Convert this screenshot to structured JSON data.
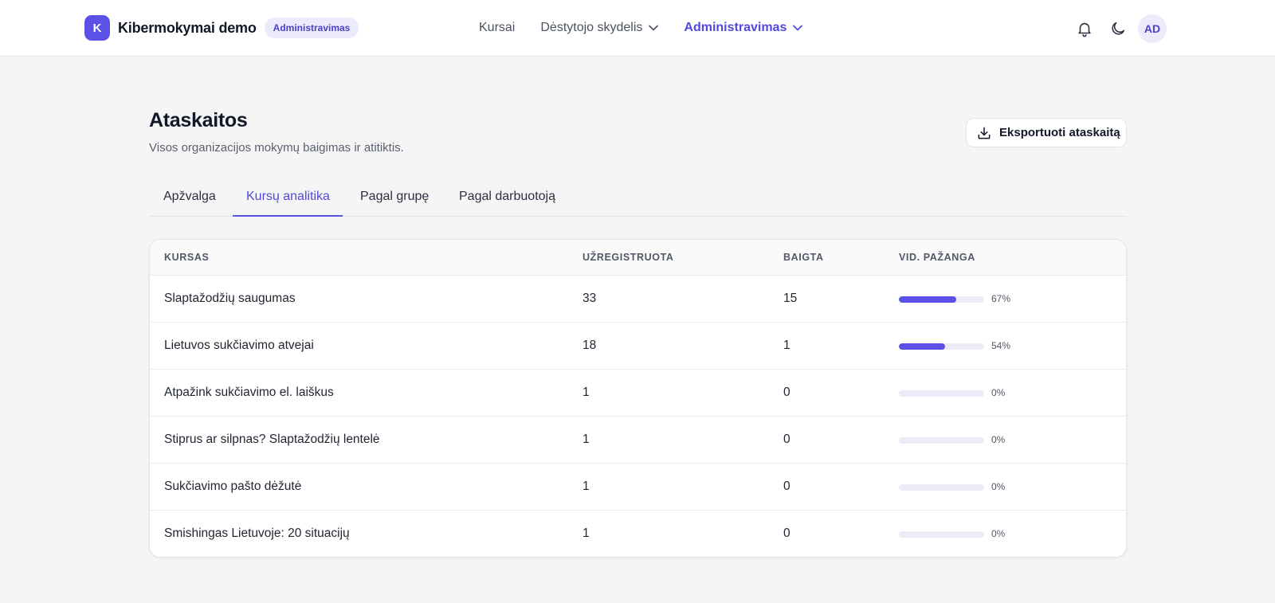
{
  "header": {
    "logo_letter": "K",
    "app_name": "Kibermokymai demo",
    "role_badge": "Administravimas",
    "nav": [
      {
        "label": "Kursai"
      },
      {
        "label": "Dėstytojo skydelis"
      },
      {
        "label": "Administravimas"
      }
    ],
    "avatar_initials": "AD",
    "icons": [
      "bell-icon",
      "moon-icon"
    ]
  },
  "page": {
    "title": "Ataskaitos",
    "subtitle": "Visos organizacijos mokymų baigimas ir atitiktis.",
    "export_label": "Eksportuoti ataskaitą"
  },
  "tabs": [
    {
      "label": "Apžvalga"
    },
    {
      "label": "Kursų analitika"
    },
    {
      "label": "Pagal grupę"
    },
    {
      "label": "Pagal darbuotoją"
    }
  ],
  "table": {
    "columns": [
      "KURSAS",
      "UŽREGISTRUOTA",
      "BAIGTA",
      "VID. PAŽANGA"
    ],
    "rows": [
      {
        "course": "Slaptažodžių saugumas",
        "enrolled": "33",
        "completed": "15",
        "progress": 67,
        "progress_label": "67%"
      },
      {
        "course": "Lietuvos sukčiavimo atvejai",
        "enrolled": "18",
        "completed": "1",
        "progress": 54,
        "progress_label": "54%"
      },
      {
        "course": "Atpažink sukčiavimo el. laiškus",
        "enrolled": "1",
        "completed": "0",
        "progress": 0,
        "progress_label": "0%"
      },
      {
        "course": "Stiprus ar silpnas? Slaptažodžių lentelė",
        "enrolled": "1",
        "completed": "0",
        "progress": 0,
        "progress_label": "0%"
      },
      {
        "course": "Sukčiavimo pašto dėžutė",
        "enrolled": "1",
        "completed": "0",
        "progress": 0,
        "progress_label": "0%"
      },
      {
        "course": "Smishingas Lietuvoje: 20 situacijų",
        "enrolled": "1",
        "completed": "0",
        "progress": 0,
        "progress_label": "0%"
      }
    ]
  },
  "colors": {
    "accent": "#5b51e6",
    "accent_text": "#5148e0",
    "badge_bg": "#ecebfb",
    "track": "#ecebf7"
  }
}
